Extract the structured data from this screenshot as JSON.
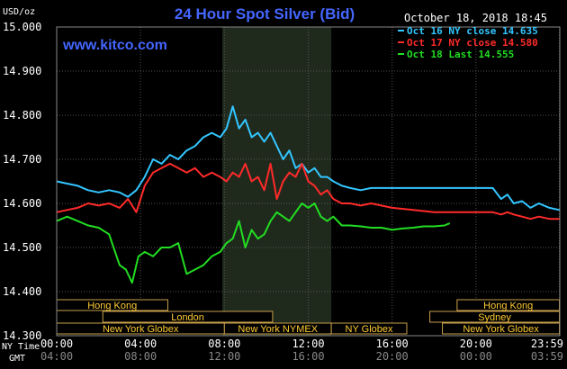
{
  "chart_data": {
    "type": "line",
    "title": "24 Hour Spot Silver (Bid)",
    "timestamp": "October 18, 2018 18:45",
    "watermark": "www.kitco.com",
    "ylabel": "USD/oz",
    "ylim": [
      14.3,
      15.0
    ],
    "y_ticks": [
      "14.300",
      "14.400",
      "14.500",
      "14.600",
      "14.700",
      "14.800",
      "14.900",
      "15.000"
    ],
    "y_tick_values": [
      14.3,
      14.4,
      14.5,
      14.6,
      14.7,
      14.8,
      14.9,
      15.0
    ],
    "xlim": [
      0,
      24
    ],
    "x_axis_ny_label": "NY Time",
    "x_axis_gmt_label": "GMT",
    "x_ticks_ny": [
      "00:00",
      "04:00",
      "08:00",
      "12:00",
      "16:00",
      "20:00",
      "23:59"
    ],
    "x_ticks_gmt": [
      "04:00",
      "08:00",
      "12:00",
      "16:00",
      "20:00",
      "00:00",
      "03:59"
    ],
    "x_tick_hours": [
      0,
      4,
      8,
      12,
      16,
      20,
      23.98
    ],
    "grid": true,
    "legend_placement": "top-right",
    "highlight_range": [
      7.9,
      13.1
    ],
    "sessions": [
      {
        "name": "Hong Kong",
        "start": 0,
        "end": 5.3
      },
      {
        "name": "London",
        "start": 2.2,
        "end": 10.3
      },
      {
        "name": "New York Globex",
        "start": 0,
        "end": 8.0
      },
      {
        "name": "New York NYMEX",
        "start": 8.0,
        "end": 13.1
      },
      {
        "name": "NY Globex",
        "start": 13.1,
        "end": 16.7
      },
      {
        "name": "Hong Kong",
        "start": 19.1,
        "end": 23.98
      },
      {
        "name": "Sydney",
        "start": 17.8,
        "end": 23.98
      },
      {
        "name": "New York Globex",
        "start": 18.4,
        "end": 23.98
      }
    ],
    "series": [
      {
        "name": "Oct 16 NY close 14.635",
        "color": "#33c6ff",
        "x": [
          0,
          0.5,
          1,
          1.5,
          2,
          2.5,
          3,
          3.4,
          3.8,
          4.2,
          4.6,
          5,
          5.4,
          5.8,
          6.2,
          6.6,
          7,
          7.4,
          7.8,
          8.1,
          8.4,
          8.7,
          9,
          9.3,
          9.6,
          9.9,
          10.2,
          10.5,
          10.8,
          11.1,
          11.4,
          11.7,
          12,
          12.3,
          12.6,
          12.9,
          13.2,
          13.6,
          14,
          14.5,
          15,
          16,
          17,
          18,
          19,
          20,
          20.8,
          21.2,
          21.5,
          21.8,
          22.2,
          22.6,
          23,
          23.5,
          23.98
        ],
        "values": [
          14.65,
          14.645,
          14.64,
          14.63,
          14.625,
          14.63,
          14.625,
          14.615,
          14.63,
          14.66,
          14.7,
          14.69,
          14.71,
          14.7,
          14.72,
          14.73,
          14.75,
          14.76,
          14.75,
          14.77,
          14.82,
          14.77,
          14.79,
          14.75,
          14.76,
          14.74,
          14.76,
          14.73,
          14.7,
          14.72,
          14.68,
          14.69,
          14.67,
          14.68,
          14.66,
          14.66,
          14.65,
          14.64,
          14.635,
          14.63,
          14.635,
          14.635,
          14.635,
          14.635,
          14.635,
          14.635,
          14.635,
          14.61,
          14.62,
          14.6,
          14.605,
          14.59,
          14.6,
          14.59,
          14.585
        ]
      },
      {
        "name": "Oct 17 NY close 14.580",
        "color": "#ff2a2a",
        "x": [
          0,
          0.5,
          1,
          1.5,
          2,
          2.5,
          3,
          3.4,
          3.8,
          4.2,
          4.6,
          5,
          5.4,
          5.8,
          6.2,
          6.6,
          7,
          7.4,
          7.8,
          8.1,
          8.4,
          8.7,
          9,
          9.3,
          9.6,
          9.9,
          10.2,
          10.5,
          10.8,
          11.1,
          11.4,
          11.7,
          12,
          12.3,
          12.6,
          12.9,
          13.2,
          13.6,
          14,
          14.5,
          15,
          16,
          17,
          18,
          19,
          20,
          20.8,
          21.2,
          21.5,
          21.8,
          22.2,
          22.6,
          23,
          23.5,
          23.98
        ],
        "values": [
          14.58,
          14.585,
          14.59,
          14.6,
          14.595,
          14.6,
          14.59,
          14.61,
          14.58,
          14.64,
          14.67,
          14.68,
          14.69,
          14.68,
          14.67,
          14.68,
          14.66,
          14.67,
          14.66,
          14.65,
          14.67,
          14.66,
          14.69,
          14.65,
          14.66,
          14.63,
          14.69,
          14.61,
          14.65,
          14.67,
          14.66,
          14.69,
          14.65,
          14.64,
          14.62,
          14.63,
          14.61,
          14.6,
          14.6,
          14.595,
          14.6,
          14.59,
          14.585,
          14.58,
          14.58,
          14.58,
          14.58,
          14.575,
          14.58,
          14.575,
          14.57,
          14.565,
          14.57,
          14.565,
          14.565
        ]
      },
      {
        "name": "Oct 18 Last 14.555",
        "color": "#22dd22",
        "x": [
          0,
          0.5,
          1,
          1.5,
          2,
          2.5,
          3,
          3.3,
          3.6,
          3.9,
          4.2,
          4.6,
          5,
          5.4,
          5.8,
          6.2,
          6.6,
          7,
          7.4,
          7.8,
          8.1,
          8.4,
          8.7,
          9,
          9.3,
          9.6,
          9.9,
          10.2,
          10.5,
          10.8,
          11.1,
          11.4,
          11.7,
          12,
          12.3,
          12.6,
          12.9,
          13.2,
          13.6,
          14,
          14.5,
          15,
          15.5,
          16,
          16.5,
          17,
          17.5,
          18,
          18.5,
          18.75
        ],
        "values": [
          14.56,
          14.57,
          14.56,
          14.55,
          14.545,
          14.53,
          14.46,
          14.45,
          14.42,
          14.48,
          14.49,
          14.48,
          14.5,
          14.5,
          14.51,
          14.44,
          14.45,
          14.46,
          14.48,
          14.49,
          14.51,
          14.52,
          14.56,
          14.5,
          14.54,
          14.52,
          14.53,
          14.56,
          14.58,
          14.57,
          14.56,
          14.58,
          14.6,
          14.59,
          14.6,
          14.57,
          14.56,
          14.57,
          14.55,
          14.55,
          14.548,
          14.545,
          14.545,
          14.54,
          14.543,
          14.545,
          14.548,
          14.548,
          14.55,
          14.555
        ]
      }
    ]
  }
}
